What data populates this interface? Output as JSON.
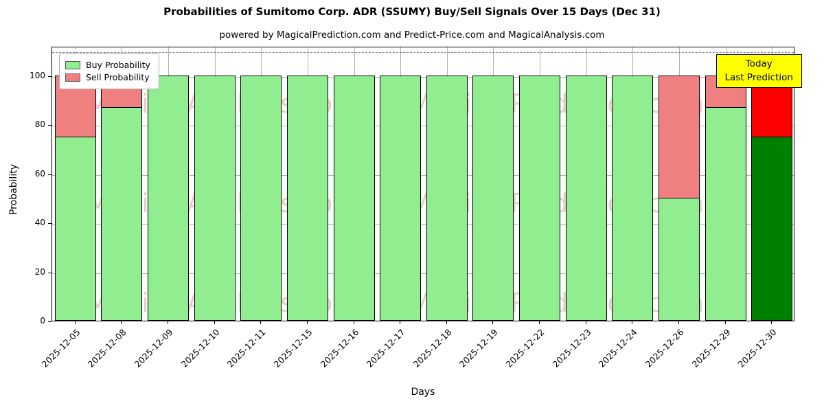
{
  "title": "Probabilities of Sumitomo Corp. ADR (SSUMY) Buy/Sell Signals Over 15 Days (Dec 31)",
  "subtitle": "powered by MagicalPrediction.com and Predict-Price.com and MagicalAnalysis.com",
  "watermark_left": "MagicalAnalysis.com",
  "watermark_right": "Magica Prediction.com",
  "annotation": {
    "line1": "Today",
    "line2": "Last Prediction",
    "bg_color": "#ffff00"
  },
  "legend": [
    {
      "label": "Buy Probability",
      "color": "#90EE90"
    },
    {
      "label": "Sell Probability",
      "color": "#F08080"
    }
  ],
  "chart_data": {
    "type": "bar",
    "stacked": true,
    "title": "Probabilities of Sumitomo Corp. ADR (SSUMY) Buy/Sell Signals Over 15 Days (Dec 31)",
    "xlabel": "Days",
    "ylabel": "Probability",
    "yticks": [
      0,
      20,
      40,
      60,
      80,
      100
    ],
    "ylim": [
      0,
      112
    ],
    "dashed_line_y": 110,
    "grid": true,
    "legend_position": "upper left",
    "categories": [
      "2025-12-05",
      "2025-12-08",
      "2025-12-09",
      "2025-12-10",
      "2025-12-11",
      "2025-12-15",
      "2025-12-16",
      "2025-12-17",
      "2025-12-18",
      "2025-12-19",
      "2025-12-22",
      "2025-12-23",
      "2025-12-24",
      "2025-12-26",
      "2025-12-29",
      "2025-12-30"
    ],
    "series": [
      {
        "name": "Buy Probability",
        "values": [
          75,
          87,
          100,
          100,
          100,
          100,
          100,
          100,
          100,
          100,
          100,
          100,
          100,
          50,
          87,
          75
        ]
      },
      {
        "name": "Sell Probability",
        "values": [
          25,
          13,
          0,
          0,
          0,
          0,
          0,
          0,
          0,
          0,
          0,
          0,
          0,
          50,
          13,
          25
        ]
      }
    ],
    "bar_colors": {
      "buy": "#90EE90",
      "sell": "#F08080"
    },
    "last_bar_colors": {
      "buy": "#008000",
      "sell": "#FF0000"
    },
    "edge_color": "#000000"
  }
}
